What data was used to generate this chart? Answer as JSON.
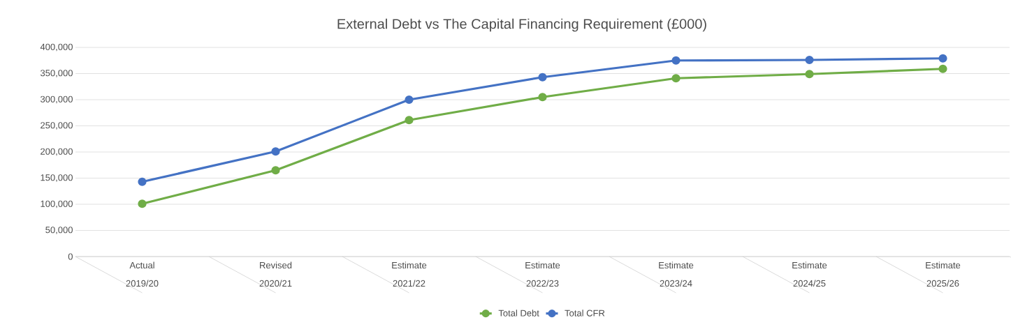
{
  "chart_data": {
    "type": "line",
    "title": "External Debt vs The Capital Financing Requirement (£000)",
    "categories": [
      "Actual 2019/20",
      "Revised 2020/21",
      "Estimate 2021/22",
      "Estimate 2022/23",
      "Estimate 2023/24",
      "Estimate 2024/25",
      "Estimate 2025/26"
    ],
    "series": [
      {
        "name": "Total Debt",
        "color": "#70ad47",
        "values": [
          101000,
          165000,
          261000,
          305000,
          341000,
          349000,
          359000
        ]
      },
      {
        "name": "Total CFR",
        "color": "#4472c4",
        "values": [
          143000,
          201000,
          300000,
          343000,
          375000,
          376000,
          379000
        ]
      }
    ],
    "ylim": [
      0,
      400000
    ],
    "yticks": [
      {
        "value": 0,
        "label": "0"
      },
      {
        "value": 50000,
        "label": "50,000"
      },
      {
        "value": 100000,
        "label": "100,000"
      },
      {
        "value": 150000,
        "label": "150,000"
      },
      {
        "value": 200000,
        "label": "200,000"
      },
      {
        "value": 250000,
        "label": "250,000"
      },
      {
        "value": 300000,
        "label": "300,000"
      },
      {
        "value": 350000,
        "label": "350,000"
      },
      {
        "value": 400000,
        "label": "400,000"
      }
    ],
    "grid": "y",
    "legend": "bottom",
    "marker": "circle",
    "line_style": "solid"
  }
}
